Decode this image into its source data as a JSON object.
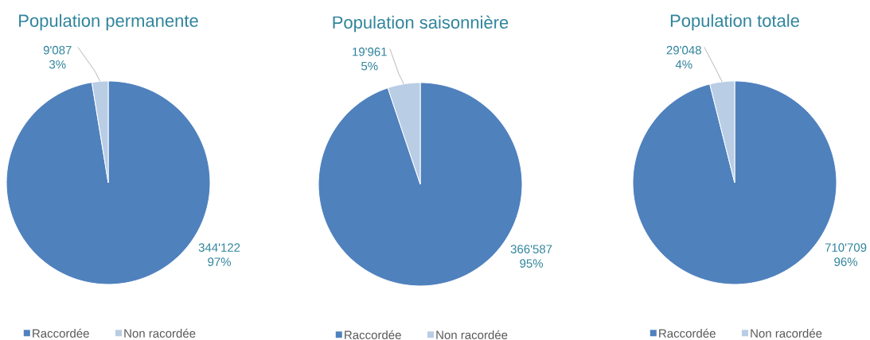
{
  "chart_data": [
    {
      "type": "pie",
      "title": "Population permanente",
      "categories": [
        "Raccordée",
        "Non racordée"
      ],
      "values": [
        344122,
        9087
      ],
      "colors": [
        "#4f81bd",
        "#b9cde5"
      ],
      "value_labels": [
        "344'122",
        "9'087"
      ],
      "annotations": [
        "97%",
        "3%"
      ],
      "legend": "bottom"
    },
    {
      "type": "pie",
      "title": "Population saisonnière",
      "categories": [
        "Raccordée",
        "Non racordée"
      ],
      "values": [
        366587,
        19961
      ],
      "colors": [
        "#4f81bd",
        "#b9cde5"
      ],
      "value_labels": [
        "366'587",
        "19'961"
      ],
      "annotations": [
        "95%",
        "5%"
      ],
      "legend": "bottom"
    },
    {
      "type": "pie",
      "title": "Population totale",
      "categories": [
        "Raccordée",
        "Non racordée"
      ],
      "values": [
        710709,
        29048
      ],
      "colors": [
        "#4f81bd",
        "#b9cde5"
      ],
      "value_labels": [
        "710'709",
        "29'048"
      ],
      "annotations": [
        "96%",
        "4%"
      ],
      "legend": "bottom"
    }
  ]
}
